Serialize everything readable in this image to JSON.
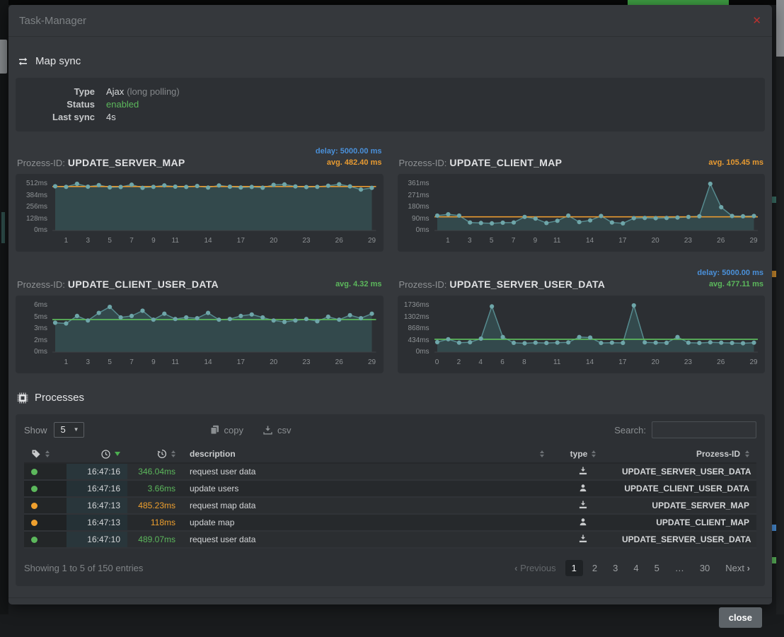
{
  "window": {
    "title": "Task-Manager",
    "close_icon": "✕"
  },
  "map_sync": {
    "heading": "Map sync",
    "fields": [
      {
        "label": "Type",
        "value": "Ajax",
        "note": "(long polling)"
      },
      {
        "label": "Status",
        "value": "enabled"
      },
      {
        "label": "Last sync",
        "value": "4s"
      }
    ],
    "status_color": "#5cb85c"
  },
  "chart_data": [
    {
      "type": "area",
      "title_prefix": "Prozess-ID:",
      "title": "UPDATE_SERVER_MAP",
      "delay_label": "delay: 5000.00 ms",
      "delay_color": "#4a90d9",
      "avg_label": "avg. 482.40 ms",
      "avg_value": 482.4,
      "avg_color": "#e79a31",
      "ylim": [
        0,
        512
      ],
      "ytick_labels_top_down": [
        "512ms",
        "384ms",
        "256ms",
        "128ms",
        "0ms"
      ],
      "xtick_indices": [
        1,
        3,
        5,
        7,
        9,
        11,
        14,
        17,
        20,
        23,
        26,
        29
      ],
      "values": [
        485,
        479,
        512,
        480,
        498,
        473,
        477,
        503,
        468,
        479,
        495,
        481,
        478,
        488,
        471,
        494,
        480,
        472,
        478,
        469,
        500,
        505,
        483,
        476,
        479,
        491,
        507,
        484,
        449,
        468
      ]
    },
    {
      "type": "area",
      "title_prefix": "Prozess-ID:",
      "title": "UPDATE_CLIENT_MAP",
      "delay_label": null,
      "delay_color": "#4a90d9",
      "avg_label": "avg. 105.45 ms",
      "avg_value": 105.45,
      "avg_color": "#e79a31",
      "ylim": [
        0,
        361
      ],
      "ytick_labels_top_down": [
        "361ms",
        "271ms",
        "180ms",
        "90ms",
        "0ms"
      ],
      "xtick_indices": [
        1,
        3,
        5,
        7,
        9,
        11,
        14,
        17,
        20,
        23,
        26,
        29
      ],
      "values": [
        115,
        125,
        115,
        62,
        58,
        55,
        60,
        62,
        105,
        92,
        58,
        75,
        115,
        65,
        78,
        112,
        62,
        55,
        95,
        97,
        95,
        97,
        100,
        105,
        110,
        361,
        180,
        112,
        110,
        112
      ]
    },
    {
      "type": "area",
      "title_prefix": "Prozess-ID:",
      "title": "UPDATE_CLIENT_USER_DATA",
      "delay_label": null,
      "delay_color": "#4a90d9",
      "avg_label": "avg. 4.32 ms",
      "avg_value": 4.32,
      "avg_color": "#5cb85c",
      "ylim": [
        0,
        6.2
      ],
      "ytick_labels_top_down": [
        "6ms",
        "5ms",
        "3ms",
        "2ms",
        "0ms"
      ],
      "xtick_indices": [
        1,
        3,
        5,
        7,
        9,
        11,
        14,
        17,
        20,
        23,
        26,
        29
      ],
      "values": [
        3.9,
        3.8,
        4.8,
        4.2,
        5.2,
        6.0,
        4.6,
        4.8,
        5.5,
        4.3,
        5.1,
        4.4,
        4.6,
        4.5,
        5.2,
        4.3,
        4.4,
        4.8,
        5.0,
        4.6,
        4.2,
        4.0,
        4.2,
        4.4,
        4.1,
        4.7,
        4.3,
        4.9,
        4.5,
        5.1
      ]
    },
    {
      "type": "area",
      "title_prefix": "Prozess-ID:",
      "title": "UPDATE_SERVER_USER_DATA",
      "delay_label": "delay: 5000.00 ms",
      "delay_color": "#4a90d9",
      "avg_label": "avg. 477.11 ms",
      "avg_value": 477.11,
      "avg_color": "#5cb85c",
      "ylim": [
        0,
        1736
      ],
      "ytick_labels_top_down": [
        "1736ms",
        "1302ms",
        "868ms",
        "434ms",
        "0ms"
      ],
      "xtick_indices": [
        0,
        2,
        4,
        6,
        8,
        11,
        14,
        17,
        20,
        23,
        26,
        29
      ],
      "values": [
        370,
        480,
        350,
        365,
        500,
        1700,
        560,
        345,
        330,
        350,
        340,
        352,
        360,
        560,
        540,
        340,
        350,
        342,
        1736,
        360,
        350,
        345,
        560,
        350,
        338,
        362,
        350,
        340,
        330,
        350
      ]
    }
  ],
  "chart_style": {
    "line_color": "#578b8f",
    "area_color": "#33494c",
    "dot_color": "#6ea6a9",
    "axis_color": "#3e4246"
  },
  "processes": {
    "heading": "Processes",
    "show_label": "Show",
    "show_value": "5",
    "copy_label": "copy",
    "csv_label": "csv",
    "search_label": "Search:",
    "search_value": "",
    "columns": {
      "description": "description",
      "type": "type",
      "process_id": "Prozess-ID"
    },
    "status_colors": {
      "green": "#5cb85c",
      "orange": "#efa02e"
    },
    "rows": [
      {
        "status": "green",
        "time": "16:47:16",
        "duration": "346.04ms",
        "duration_color": "green",
        "description": "request user data",
        "type": "server",
        "process_id": "UPDATE_SERVER_USER_DATA"
      },
      {
        "status": "green",
        "time": "16:47:16",
        "duration": "3.66ms",
        "duration_color": "green",
        "description": "update users",
        "type": "client",
        "process_id": "UPDATE_CLIENT_USER_DATA"
      },
      {
        "status": "orange",
        "time": "16:47:13",
        "duration": "485.23ms",
        "duration_color": "orange",
        "description": "request map data",
        "type": "server",
        "process_id": "UPDATE_SERVER_MAP"
      },
      {
        "status": "orange",
        "time": "16:47:13",
        "duration": "118ms",
        "duration_color": "orange",
        "description": "update map",
        "type": "client",
        "process_id": "UPDATE_CLIENT_MAP"
      },
      {
        "status": "green",
        "time": "16:47:10",
        "duration": "489.07ms",
        "duration_color": "green",
        "description": "request user data",
        "type": "server",
        "process_id": "UPDATE_SERVER_USER_DATA"
      }
    ],
    "showing_text": "Showing 1 to 5 of 150 entries",
    "pagination": {
      "prev_icon": "‹",
      "previous_label": "Previous",
      "pages": [
        "1",
        "2",
        "3",
        "4",
        "5",
        "…",
        "30"
      ],
      "current": "1",
      "next_label": "Next",
      "next_icon": "›"
    }
  },
  "footer": {
    "close_label": "close"
  }
}
